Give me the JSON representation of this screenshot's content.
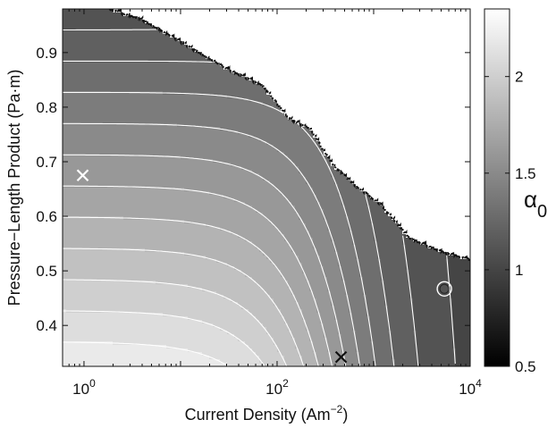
{
  "chart_data": {
    "type": "heatmap",
    "title": "",
    "xlabel": {
      "main": "Current Density (Am",
      "sup": "−2",
      "close": ")"
    },
    "ylabel": "Pressure−Length Product (Pa·m)",
    "x_scale": "log",
    "xlim": [
      0.6,
      10000
    ],
    "ylim": [
      0.325,
      0.98
    ],
    "x_ticks": [
      {
        "value": 1,
        "base": "10",
        "exp": "0"
      },
      {
        "value": 100,
        "base": "10",
        "exp": "2"
      },
      {
        "value": 10000,
        "base": "10",
        "exp": "4"
      }
    ],
    "y_ticks": [
      {
        "value": 0.4,
        "label": "0.4"
      },
      {
        "value": 0.5,
        "label": "0.5"
      },
      {
        "value": 0.6,
        "label": "0.6"
      },
      {
        "value": 0.7,
        "label": "0.7"
      },
      {
        "value": 0.8,
        "label": "0.8"
      },
      {
        "value": 0.9,
        "label": "0.9"
      }
    ],
    "colorbar": {
      "label_symbol": "α",
      "label_subscript": "0",
      "range": [
        0.5,
        2.35
      ],
      "ticks": [
        {
          "value": 0.5,
          "label": "0.5"
        },
        {
          "value": 1,
          "label": "1"
        },
        {
          "value": 1.5,
          "label": "1.5"
        },
        {
          "value": 2,
          "label": "2"
        }
      ],
      "colormap": "gray"
    },
    "contour_levels": [
      0.95,
      1.05,
      1.15,
      1.25,
      1.35,
      1.45,
      1.55,
      1.65,
      1.75,
      1.85,
      1.95,
      2.05,
      2.15
    ],
    "boundary": {
      "style": "dotted",
      "description_points": [
        [
          1.8,
          0.98
        ],
        [
          4,
          0.96
        ],
        [
          10,
          0.92
        ],
        [
          30,
          0.87
        ],
        [
          70,
          0.84
        ],
        [
          130,
          0.78
        ],
        [
          220,
          0.76
        ],
        [
          350,
          0.7
        ],
        [
          600,
          0.66
        ],
        [
          1200,
          0.62
        ],
        [
          2300,
          0.56
        ],
        [
          5000,
          0.535
        ],
        [
          10000,
          0.52
        ]
      ]
    },
    "markers": [
      {
        "label": "white-cross",
        "x": 0.97,
        "y": 0.675,
        "symbol": "x",
        "color": "#ffffff"
      },
      {
        "label": "black-cross",
        "x": 460,
        "y": 0.342,
        "symbol": "x",
        "color": "#111111"
      },
      {
        "label": "circle-marker",
        "x": 5400,
        "y": 0.467,
        "symbol": "circle",
        "color": "#ffffff"
      }
    ]
  }
}
